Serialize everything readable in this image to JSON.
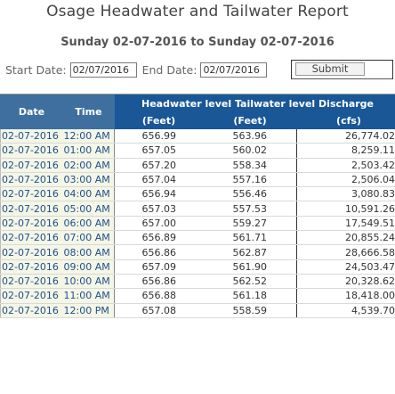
{
  "report": {
    "title": "Osage Headwater and Tailwater Report",
    "subtitle": "Sunday 02-07-2016 to Sunday 02-07-2016"
  },
  "filter": {
    "start_label": "Start Date:",
    "start_value": "02/07/2016",
    "end_label": "End Date:",
    "end_value": "02/07/2016",
    "submit_label": "Submit"
  },
  "table": {
    "headers": {
      "date": "Date",
      "time": "Time",
      "group": "Headwater level Tailwater level Discharge",
      "headwater_unit": "(Feet)",
      "tailwater_unit": "(Feet)",
      "discharge_unit": "(cfs)"
    },
    "rows": [
      {
        "date": "02-07-2016",
        "time": "12:00 AM",
        "headwater": "656.99",
        "tailwater": "563.96",
        "discharge": "26,774.02"
      },
      {
        "date": "02-07-2016",
        "time": "01:00 AM",
        "headwater": "657.05",
        "tailwater": "560.02",
        "discharge": "8,259.11"
      },
      {
        "date": "02-07-2016",
        "time": "02:00 AM",
        "headwater": "657.20",
        "tailwater": "558.34",
        "discharge": "2,503.42"
      },
      {
        "date": "02-07-2016",
        "time": "03:00 AM",
        "headwater": "657.04",
        "tailwater": "557.16",
        "discharge": "2,506.04"
      },
      {
        "date": "02-07-2016",
        "time": "04:00 AM",
        "headwater": "656.94",
        "tailwater": "556.46",
        "discharge": "3,080.83"
      },
      {
        "date": "02-07-2016",
        "time": "05:00 AM",
        "headwater": "657.03",
        "tailwater": "557.53",
        "discharge": "10,591.26"
      },
      {
        "date": "02-07-2016",
        "time": "06:00 AM",
        "headwater": "657.00",
        "tailwater": "559.27",
        "discharge": "17,549.51"
      },
      {
        "date": "02-07-2016",
        "time": "07:00 AM",
        "headwater": "656.89",
        "tailwater": "561.71",
        "discharge": "20,855.24"
      },
      {
        "date": "02-07-2016",
        "time": "08:00 AM",
        "headwater": "656.86",
        "tailwater": "562.87",
        "discharge": "28,666.58"
      },
      {
        "date": "02-07-2016",
        "time": "09:00 AM",
        "headwater": "657.09",
        "tailwater": "561.90",
        "discharge": "24,503.47"
      },
      {
        "date": "02-07-2016",
        "time": "10:00 AM",
        "headwater": "656.86",
        "tailwater": "562.52",
        "discharge": "20,328.62"
      },
      {
        "date": "02-07-2016",
        "time": "11:00 AM",
        "headwater": "656.88",
        "tailwater": "561.18",
        "discharge": "18,418.00"
      },
      {
        "date": "02-07-2016",
        "time": "12:00 PM",
        "headwater": "657.08",
        "tailwater": "558.59",
        "discharge": "4,539.70"
      }
    ]
  }
}
